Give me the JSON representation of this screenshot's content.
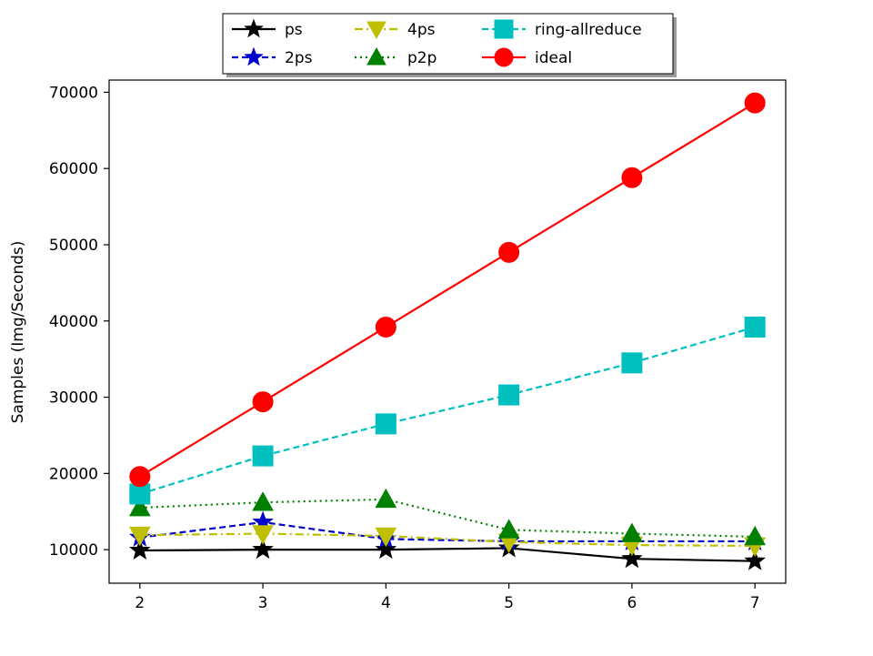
{
  "chart_data": {
    "type": "line",
    "title": "",
    "xlabel": "",
    "ylabel": "Samples (Img/Seconds)",
    "x": [
      2,
      3,
      4,
      5,
      6,
      7
    ],
    "xlim": [
      1.75,
      7.25
    ],
    "ylim": [
      5600,
      71600
    ],
    "xticks": [
      "2",
      "3",
      "4",
      "5",
      "6",
      "7"
    ],
    "yticks": [
      10000,
      20000,
      30000,
      40000,
      50000,
      60000,
      70000
    ],
    "ytick_labels": [
      "10000",
      "20000",
      "30000",
      "40000",
      "50000",
      "60000",
      "70000"
    ],
    "grid": false,
    "legend": {
      "placement": "top-center-outside",
      "columns": 3
    },
    "series": [
      {
        "name": "ps",
        "color": "#000000",
        "dash": "solid",
        "marker": "star",
        "values": [
          9900,
          10000,
          10000,
          10200,
          8800,
          8500
        ]
      },
      {
        "name": "2ps",
        "color": "#0000cc",
        "dash": "dashed",
        "marker": "star",
        "values": [
          11600,
          13600,
          11400,
          11100,
          11100,
          11100
        ]
      },
      {
        "name": "4ps",
        "color": "#bfbf00",
        "dash": "dashdot",
        "marker": "triangle-down",
        "values": [
          11900,
          12100,
          11800,
          11000,
          10600,
          10500
        ]
      },
      {
        "name": "p2p",
        "color": "#008000",
        "dash": "dotted",
        "marker": "triangle-up",
        "values": [
          15500,
          16200,
          16600,
          12600,
          12100,
          11700
        ]
      },
      {
        "name": "ring-allreduce",
        "color": "#00bfbf",
        "dash": "dashed",
        "marker": "square",
        "values": [
          17300,
          22300,
          26500,
          30300,
          34500,
          39200
        ]
      },
      {
        "name": "ideal",
        "color": "#ff0000",
        "dash": "solid",
        "marker": "circle",
        "values": [
          19600,
          29400,
          39200,
          49000,
          58800,
          68600
        ]
      }
    ]
  }
}
